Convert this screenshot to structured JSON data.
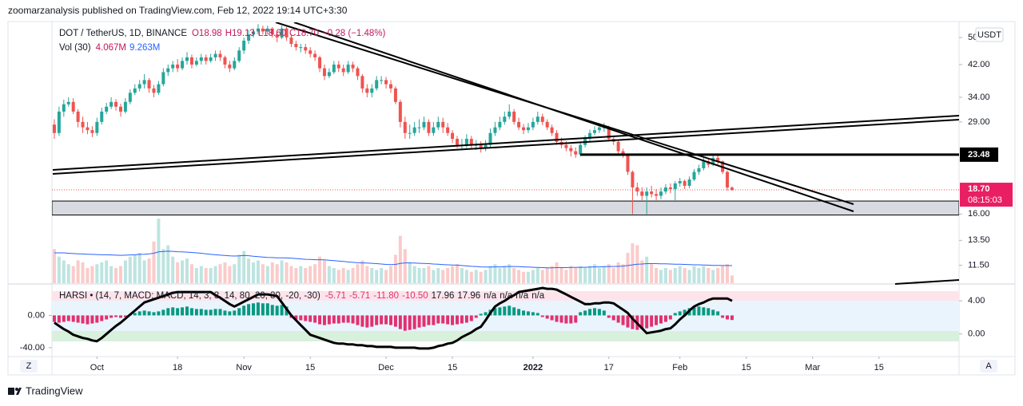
{
  "header": {
    "publisher": "zoomarzanalysis published on TradingView.com, Feb 12, 2022 19:14 UTC+3:30",
    "currency": "USDT",
    "brand": "TradingView",
    "left_button": "Z",
    "right_button": "A",
    "countdown": "08:15:03"
  },
  "chart_data": {
    "type": "candlestick",
    "log": true,
    "legend": {
      "title": "DOT / TetherUS, 1D, BINANCE",
      "values": [
        "O18.98",
        "H19.13",
        "L18.60",
        "C18.70",
        "−0.28 (−1.48%)"
      ]
    },
    "volume_legend": {
      "title": "Vol (30)",
      "values": [
        "4.067M",
        "9.263M"
      ]
    },
    "up_color": "#26a69a",
    "down_color": "#ef5350",
    "xlim": [
      -0.5,
      190.9
    ],
    "xticks": [
      {
        "value": 9,
        "label": "Oct"
      },
      {
        "value": 26,
        "label": "18"
      },
      {
        "value": 40,
        "label": "Nov"
      },
      {
        "value": 54,
        "label": "15"
      },
      {
        "value": 70,
        "label": "Dec"
      },
      {
        "value": 84,
        "label": "15"
      },
      {
        "value": 101,
        "label": "2022"
      },
      {
        "value": 117,
        "label": "17"
      },
      {
        "value": 132,
        "label": "Feb"
      },
      {
        "value": 146,
        "label": "15"
      },
      {
        "value": 160,
        "label": "Mar"
      },
      {
        "value": 174,
        "label": "15"
      }
    ],
    "ylim": [
      10.24,
      54.6
    ],
    "yticks": [
      {
        "value": 50,
        "label": "50.00"
      },
      {
        "value": 42,
        "label": "42.00"
      },
      {
        "value": 34,
        "label": "34.00"
      },
      {
        "value": 29,
        "label": "29.00"
      },
      {
        "value": 16,
        "label": "16.00"
      },
      {
        "value": 13.5,
        "label": "13.50"
      },
      {
        "value": 11.5,
        "label": "11.50"
      }
    ],
    "price_line": 23.48,
    "last_price": {
      "value": 18.7,
      "label": "18.70"
    },
    "zone": [
      15.9,
      17.4
    ],
    "open": [
      28.5,
      27,
      31,
      32.5,
      33,
      31,
      29,
      28,
      27.5,
      27,
      29,
      31,
      32,
      33,
      32,
      31,
      33,
      35,
      36,
      37,
      38,
      36,
      35,
      37,
      40,
      41,
      42,
      41,
      43,
      44,
      42,
      43,
      44,
      43,
      44,
      45,
      44,
      42,
      41,
      43,
      46,
      49,
      51,
      52,
      53,
      52,
      53,
      51,
      50,
      53,
      50,
      48,
      47,
      47,
      46,
      45,
      44,
      41,
      39,
      40,
      42,
      41,
      40,
      42,
      41,
      39,
      36,
      35,
      36,
      38,
      38,
      37,
      36,
      33,
      29,
      27,
      27,
      28,
      28,
      29,
      27,
      28,
      29,
      28,
      27,
      26,
      25,
      25,
      26,
      25,
      25,
      24.5,
      25,
      27,
      28,
      29,
      30,
      31,
      29,
      28,
      27.5,
      28,
      29,
      30,
      29,
      28,
      27,
      25.5,
      25,
      24.5,
      24,
      23.5,
      25,
      26,
      27,
      27.5,
      28,
      28,
      26,
      25.5,
      24,
      23.5,
      21,
      19,
      18.5,
      18,
      18.5,
      18.2,
      18,
      18.5,
      19,
      18.8,
      19.5,
      19.8,
      19.2,
      20,
      21,
      21.5,
      22.5,
      22,
      23,
      22.5,
      21,
      18.98
    ],
    "high": [
      29.5,
      32,
      33.5,
      34,
      33.8,
      31.5,
      30,
      29,
      28.2,
      29.8,
      31.8,
      32.8,
      34,
      33.6,
      32.6,
      33.8,
      35.8,
      37,
      38,
      39.5,
      38.5,
      36.8,
      37.8,
      41,
      42,
      43,
      43.5,
      44,
      45.5,
      44.8,
      44,
      45,
      44.8,
      45,
      46,
      46,
      44.5,
      43,
      44,
      47,
      50,
      52.5,
      53,
      54.5,
      54,
      54,
      53.5,
      52,
      54,
      53.5,
      51,
      49,
      48,
      48,
      47,
      46,
      44.5,
      42,
      41,
      43,
      43,
      42,
      43,
      42.8,
      41.5,
      39.5,
      37,
      37,
      39,
      39,
      38.8,
      38,
      36.5,
      33.5,
      30,
      28.5,
      29,
      29.5,
      30,
      29.5,
      29,
      30,
      29.8,
      28.8,
      27.5,
      26.5,
      26,
      26.8,
      26.5,
      25.8,
      25.6,
      25.8,
      27.8,
      29,
      30,
      31,
      32.5,
      31.5,
      29.8,
      28.6,
      28.8,
      29.8,
      31,
      30.6,
      29.5,
      28.5,
      27.5,
      26.2,
      25.6,
      25,
      24.6,
      25.6,
      26.6,
      27.6,
      28.2,
      28.8,
      28.8,
      28.3,
      26.4,
      25.8,
      24.4,
      23.6,
      21.2,
      19.6,
      19,
      19,
      19.2,
      18.8,
      19,
      19.4,
      19.5,
      19.8,
      20.2,
      20,
      20.4,
      21.4,
      22,
      23,
      22.9,
      23.5,
      23.4,
      22.6,
      21.2,
      19.13
    ],
    "low": [
      26,
      26.5,
      30,
      32,
      30.5,
      28,
      27,
      26.8,
      26.3,
      26.5,
      28.5,
      30.5,
      31.5,
      31.2,
      30,
      30.6,
      32.5,
      34.5,
      35.3,
      36,
      35,
      34,
      34.5,
      36.5,
      39,
      40,
      40,
      40.5,
      42,
      41,
      41.5,
      42,
      42,
      42.5,
      43,
      43,
      41,
      40,
      40.5,
      42.5,
      45,
      48,
      50,
      51,
      51,
      51,
      50,
      48.5,
      49.5,
      49,
      47,
      46,
      45.5,
      45,
      44,
      43,
      40,
      38,
      38.5,
      39.5,
      40,
      39,
      39.5,
      40,
      38,
      35,
      34,
      34,
      35.5,
      37,
      36,
      35,
      32.5,
      28,
      26,
      26,
      26.5,
      27,
      27.5,
      26.5,
      26.5,
      27.5,
      27,
      26.5,
      25.3,
      24.5,
      24.2,
      24.5,
      24.3,
      24.2,
      23.8,
      24,
      24.5,
      26.5,
      27.5,
      28.5,
      29.5,
      28.5,
      27.5,
      26.8,
      27,
      27.5,
      28.5,
      28.4,
      27.5,
      26.5,
      25,
      24.5,
      24,
      23.2,
      23,
      23.2,
      24.6,
      25.5,
      26.6,
      27,
      27.2,
      25.6,
      25,
      23.6,
      23,
      20.6,
      16,
      18,
      17.5,
      16,
      17.8,
      17.5,
      17.6,
      18.2,
      18.3,
      17.5,
      19.1,
      18.8,
      18.9,
      19.8,
      20.6,
      21.2,
      21.6,
      21.8,
      22,
      20.7,
      18.6,
      18.6
    ],
    "close": [
      27,
      31,
      32.5,
      33,
      31,
      29,
      28,
      27.5,
      27,
      29,
      31,
      32,
      33,
      32,
      31,
      33,
      35,
      36,
      37,
      38,
      36,
      35,
      37,
      40,
      41,
      42,
      41,
      43,
      44,
      42,
      43,
      44,
      43,
      44,
      45,
      44,
      42,
      41,
      43,
      46,
      49,
      51,
      52,
      53,
      52,
      53,
      51,
      50,
      53,
      50,
      48,
      47,
      47,
      46,
      45,
      44,
      41,
      39,
      40,
      42,
      41,
      40,
      42,
      41,
      39,
      36,
      35,
      36,
      38,
      38,
      37,
      36,
      33,
      29,
      27,
      27,
      28,
      28,
      29,
      27,
      28,
      29,
      28,
      27,
      26,
      25,
      25,
      26,
      25,
      25,
      24.5,
      25,
      27,
      28,
      29,
      30,
      31,
      29,
      28,
      27.5,
      28,
      29,
      30,
      29,
      28,
      27,
      25.5,
      25,
      24.5,
      24,
      23.5,
      25,
      26,
      27,
      27.5,
      28,
      28,
      26,
      25.5,
      24,
      23.5,
      21,
      19,
      18.5,
      18,
      18.5,
      18.2,
      18,
      18.5,
      19,
      18.8,
      19.5,
      19.8,
      19.2,
      20,
      21,
      21.5,
      22.5,
      22,
      23,
      22.5,
      21,
      18.98,
      18.7
    ],
    "volume_ylim": [
      0,
      40
    ],
    "volume": [
      18,
      14,
      12,
      10,
      9,
      12,
      11,
      8,
      9,
      10,
      11,
      12,
      9,
      8,
      9,
      12,
      14,
      15,
      16,
      12,
      13,
      22,
      34,
      18,
      20,
      14,
      11,
      12,
      13,
      10,
      8,
      9,
      8,
      8,
      9,
      10,
      11,
      9,
      10,
      15,
      17,
      13,
      11,
      12,
      10,
      9,
      11,
      10,
      12,
      11,
      9,
      8,
      9,
      8,
      9,
      10,
      14,
      12,
      9,
      8,
      7,
      8,
      7,
      8,
      10,
      12,
      9,
      8,
      7,
      8,
      7,
      9,
      15,
      25,
      18,
      11,
      9,
      8,
      8,
      9,
      7,
      8,
      7,
      8,
      9,
      10,
      8,
      7,
      6,
      7,
      6,
      7,
      9,
      10,
      8,
      9,
      10,
      8,
      7,
      6,
      6,
      7,
      8,
      7,
      8,
      9,
      11,
      8,
      7,
      9,
      8,
      9,
      8,
      9,
      10,
      8,
      9,
      10,
      8,
      11,
      10,
      16,
      21,
      20,
      12,
      14,
      10,
      8,
      7,
      8,
      7,
      8,
      9,
      8,
      7,
      9,
      8,
      9,
      8,
      7,
      8,
      9,
      10,
      4.067
    ],
    "volume_ma_color": "#2962ff",
    "volume_ma": [
      16,
      16,
      16,
      15.8,
      15.6,
      15.5,
      15.4,
      15.3,
      15.2,
      15.1,
      15,
      15,
      14.9,
      14.8,
      14.7,
      14.8,
      14.9,
      15,
      15.2,
      15.3,
      15.5,
      15.8,
      16.5,
      16.7,
      16.9,
      16.8,
      16.6,
      16.5,
      16.4,
      16.2,
      16,
      15.8,
      15.5,
      15.2,
      15,
      14.8,
      14.6,
      14.4,
      14.3,
      14.4,
      14.6,
      14.5,
      14.2,
      14,
      13.8,
      13.6,
      13.5,
      13.4,
      13.4,
      13.3,
      13.2,
      13,
      12.8,
      12.6,
      12.5,
      12.4,
      12.4,
      12.3,
      12.1,
      11.9,
      11.7,
      11.5,
      11.2,
      11,
      10.8,
      10.7,
      10.6,
      10.5,
      10.3,
      10.1,
      9.9,
      9.8,
      9.9,
      10.4,
      10.7,
      10.7,
      10.6,
      10.5,
      10.4,
      10.3,
      10.1,
      10,
      9.8,
      9.7,
      9.6,
      9.5,
      9.3,
      9.1,
      8.9,
      8.8,
      8.6,
      8.5,
      8.5,
      8.6,
      8.6,
      8.7,
      8.8,
      8.8,
      8.7,
      8.6,
      8.5,
      8.4,
      8.3,
      8.2,
      8.1,
      8.1,
      8.2,
      8.2,
      8.2,
      8.3,
      8.3,
      8.4,
      8.4,
      8.5,
      8.6,
      8.6,
      8.7,
      8.8,
      8.8,
      8.9,
      9.0,
      9.3,
      9.7,
      10,
      10.1,
      10.3,
      10.3,
      10.3,
      10.2,
      10.2,
      10.1,
      10,
      10,
      9.9,
      9.8,
      9.7,
      9.7,
      9.6,
      9.5,
      9.4,
      9.4,
      9.3,
      9.3,
      9.263
    ],
    "harsi": {
      "legend": {
        "title": "HARSI • (14, 7, MACD: MACD, 14, 3, 3, 14, 80, 20, 30, -20, -30)",
        "values": [
          "-5.71",
          "-5.71",
          "-11.80",
          "-10.50",
          "17.96",
          "17.96",
          "n/a",
          "n/a",
          "n/a",
          "n/a"
        ]
      },
      "up_color": "#089981",
      "down_color": "#e0316f",
      "line_color": "#000000",
      "ylim": [
        -51,
        38
      ],
      "yticks": [
        {
          "value": 0,
          "label": "0.00"
        },
        {
          "value": -40,
          "label": "-40.00"
        }
      ],
      "y2lim": [
        -2.73,
        5.95
      ],
      "y2ticks": [
        {
          "value": 4,
          "label": "4.00"
        },
        {
          "value": 0,
          "label": "0.00"
        }
      ],
      "histogram": [
        -8,
        -9,
        -8,
        -7,
        -8,
        -9,
        -10,
        -11,
        -10,
        -9,
        -7,
        -5,
        -3,
        -2,
        -3,
        -2,
        1,
        3,
        5,
        6,
        5,
        4,
        5,
        7,
        9,
        10,
        9,
        10,
        11,
        9,
        8,
        8,
        7,
        7,
        8,
        8,
        6,
        5,
        6,
        9,
        12,
        14,
        15,
        16,
        15,
        15,
        13,
        12,
        13,
        11,
        -3,
        -5,
        -6,
        -7,
        -8,
        -9,
        -11,
        -12,
        -11,
        -10,
        -10,
        -9,
        -9,
        -10,
        -12,
        -14,
        -15,
        -14,
        -12,
        -11,
        -11,
        -12,
        -14,
        -17,
        -19,
        -18,
        -17,
        -15,
        -14,
        -12,
        -12,
        -10,
        -10,
        -11,
        -12,
        -11,
        -10,
        -9,
        -7,
        -3,
        2,
        4,
        7,
        9,
        10,
        11,
        12,
        10,
        8,
        6,
        5,
        4,
        3,
        -2,
        -4,
        -6,
        -8,
        -9,
        -10,
        -10,
        -9,
        4,
        6,
        8,
        9,
        8,
        6,
        -3,
        -6,
        -9,
        -12,
        -15,
        -17,
        -18,
        -17,
        -16,
        -14,
        -12,
        -10,
        -8,
        -5,
        3,
        5,
        7,
        9,
        10,
        11,
        10,
        9,
        7,
        5,
        -3,
        -5,
        -5.71
      ],
      "line": [
        -9,
        -13,
        -17,
        -20,
        -24,
        -26,
        -28,
        -29,
        -31,
        -32,
        -28,
        -23,
        -18,
        -13,
        -9,
        -4,
        1,
        6,
        11,
        16,
        18,
        20,
        22,
        24,
        26,
        28,
        29,
        29,
        29,
        29,
        29,
        29,
        29,
        29,
        25,
        22,
        18,
        14,
        11,
        14,
        17,
        20,
        23,
        26,
        26,
        26,
        25,
        24,
        16,
        8,
        0,
        -6,
        -12,
        -18,
        -24,
        -26,
        -28,
        -30,
        -32,
        -34,
        -35,
        -35,
        -36,
        -36,
        -37,
        -37,
        -38,
        -38,
        -39,
        -39,
        -39,
        -39,
        -40,
        -40,
        -40,
        -40,
        -40,
        -41,
        -41,
        -41,
        -40,
        -38,
        -37,
        -35,
        -34,
        -31,
        -27,
        -24,
        -21,
        -17,
        -14,
        -6,
        3,
        11,
        15,
        18,
        22,
        25,
        29,
        30,
        31,
        32,
        33,
        34,
        33,
        33,
        32,
        29,
        26,
        23,
        20,
        17,
        14,
        14,
        15,
        15,
        16,
        16,
        15,
        11,
        7,
        3,
        -4,
        -10,
        -16,
        -22,
        -21,
        -20,
        -19,
        -17,
        -16,
        -11,
        -5,
        0,
        6,
        11,
        14,
        16,
        19,
        21,
        21,
        21,
        21,
        18
      ]
    }
  }
}
